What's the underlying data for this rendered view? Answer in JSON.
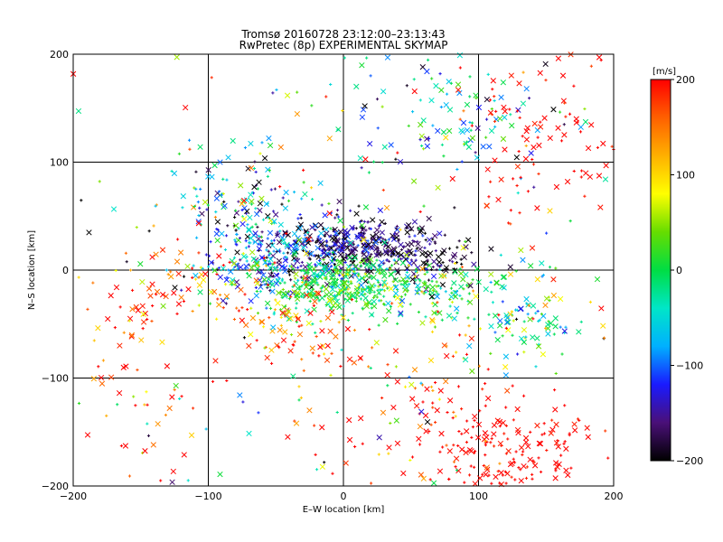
{
  "chart_data": {
    "type": "scatter",
    "title": "Tromsø 20160728 23:12:00–23:13:43",
    "subtitle": "RwPretec (8p) EXPERIMENTAL SKYMAP",
    "xlabel": "E–W location [km]",
    "ylabel": "N–S location [km]",
    "xlim": [
      -200,
      200
    ],
    "ylim": [
      -200,
      200
    ],
    "xticks": [
      "−200",
      "−100",
      "0",
      "100",
      "200"
    ],
    "yticks": [
      "−200",
      "−100",
      "0",
      "100",
      "200"
    ],
    "grid_values": [
      -100,
      0,
      100
    ],
    "grid": true,
    "markers": [
      "x",
      "+"
    ],
    "colorbar": {
      "label": "[m/s]",
      "range": [
        -200,
        200
      ],
      "ticks": [
        "200",
        "100",
        "0",
        "−100",
        "−200"
      ],
      "colormap": [
        "#000000",
        "#4a1078",
        "#1a1aff",
        "#00b0ff",
        "#00e6c8",
        "#00dd44",
        "#66dd00",
        "#ffff00",
        "#ffb000",
        "#ff6000",
        "#ff0000"
      ]
    },
    "clusters": [
      {
        "cx": 0,
        "cy": 25,
        "sx": 25,
        "sy": 14,
        "n": 280,
        "vmean": -170,
        "vsd": 40
      },
      {
        "cx": 50,
        "cy": 15,
        "sx": 22,
        "sy": 12,
        "n": 160,
        "vmean": -180,
        "vsd": 35
      },
      {
        "cx": -45,
        "cy": 5,
        "sx": 30,
        "sy": 18,
        "n": 230,
        "vmean": -110,
        "vsd": 45
      },
      {
        "cx": -5,
        "cy": -15,
        "sx": 35,
        "sy": 14,
        "n": 300,
        "vmean": 10,
        "vsd": 30
      },
      {
        "cx": 50,
        "cy": -15,
        "sx": 30,
        "sy": 15,
        "n": 130,
        "vmean": -10,
        "vsd": 50
      },
      {
        "cx": 130,
        "cy": -40,
        "sx": 25,
        "sy": 25,
        "n": 110,
        "vmean": -10,
        "vsd": 60
      },
      {
        "cx": -75,
        "cy": 60,
        "sx": 22,
        "sy": 25,
        "n": 140,
        "vmean": -80,
        "vsd": 90
      },
      {
        "cx": 80,
        "cy": 145,
        "sx": 40,
        "sy": 30,
        "n": 110,
        "vmean": -60,
        "vsd": 100
      },
      {
        "cx": 150,
        "cy": 130,
        "sx": 30,
        "sy": 40,
        "n": 90,
        "vmean": 200,
        "vsd": 10
      },
      {
        "cx": 120,
        "cy": -170,
        "sx": 35,
        "sy": 25,
        "n": 170,
        "vmean": 200,
        "vsd": 10
      },
      {
        "cx": 60,
        "cy": -130,
        "sx": 40,
        "sy": 40,
        "n": 90,
        "vmean": 180,
        "vsd": 50
      },
      {
        "cx": -150,
        "cy": -80,
        "sx": 25,
        "sy": 50,
        "n": 70,
        "vmean": 170,
        "vsd": 70
      },
      {
        "cx": -120,
        "cy": -10,
        "sx": 30,
        "sy": 20,
        "n": 60,
        "vmean": 180,
        "vsd": 60
      },
      {
        "cx": -40,
        "cy": -50,
        "sx": 25,
        "sy": 20,
        "n": 80,
        "vmean": 150,
        "vsd": 60
      },
      {
        "cx": 0,
        "cy": 0,
        "sx": 110,
        "sy": 110,
        "n": 260,
        "vmean": 40,
        "vsd": 150
      }
    ]
  }
}
